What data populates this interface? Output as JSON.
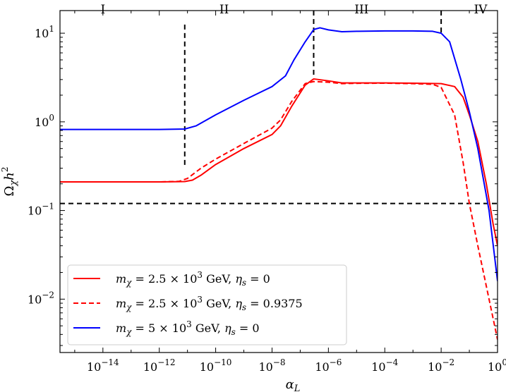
{
  "chart_data": {
    "type": "line",
    "title": "",
    "xlabel": "α_L",
    "ylabel": "Ω_χ h²",
    "xscale": "log",
    "yscale": "log",
    "xlim": [
      3e-16,
      1
    ],
    "ylim": [
      0.0025,
      18
    ],
    "grid": false,
    "legend_position": "lower-left",
    "x_ticks": [
      {
        "value": 1e-14,
        "base": "10",
        "exp": "−14"
      },
      {
        "value": 1e-12,
        "base": "10",
        "exp": "−12"
      },
      {
        "value": 1e-10,
        "base": "10",
        "exp": "−10"
      },
      {
        "value": 1e-08,
        "base": "10",
        "exp": "−8"
      },
      {
        "value": 1e-06,
        "base": "10",
        "exp": "−6"
      },
      {
        "value": 0.0001,
        "base": "10",
        "exp": "−4"
      },
      {
        "value": 0.01,
        "base": "10",
        "exp": "−2"
      },
      {
        "value": 1,
        "base": "10",
        "exp": "0"
      }
    ],
    "y_ticks": [
      {
        "value": 0.01,
        "base": "10",
        "exp": "−2"
      },
      {
        "value": 0.1,
        "base": "10",
        "exp": "−1"
      },
      {
        "value": 1,
        "base": "10",
        "exp": "0"
      },
      {
        "value": 10,
        "base": "10",
        "exp": "1"
      }
    ],
    "regions": [
      {
        "label": "I",
        "x": 1e-14
      },
      {
        "label": "II",
        "x": 2e-10
      },
      {
        "label": "III",
        "x": 1.5e-05
      },
      {
        "label": "IV",
        "x": 0.25
      }
    ],
    "region_boundaries": [
      {
        "x": 8e-12,
        "y_range": [
          0.32,
          12.5
        ]
      },
      {
        "x": 3e-07,
        "y_range": [
          3.2,
          18
        ]
      },
      {
        "x": 0.01,
        "y_range": [
          10,
          18
        ]
      }
    ],
    "reference_line": {
      "y": 0.12,
      "style": "dashed",
      "color": "#000000"
    },
    "series": [
      {
        "name": "m_χ = 2.5 × 10³ GeV, η_s = 0",
        "legend": {
          "lhs": "m",
          "sub": "χ",
          "mid": " = 2.5 × 10",
          "sup": "3",
          "unit": " GeV, ",
          "eta": "η",
          "eta_sub": "s",
          "rhs": " = 0"
        },
        "color": "#ff0000",
        "style": "solid",
        "points": [
          [
            3e-16,
            0.21
          ],
          [
            1e-12,
            0.21
          ],
          [
            8e-12,
            0.212
          ],
          [
            1.5e-11,
            0.22
          ],
          [
            3e-11,
            0.25
          ],
          [
            1e-10,
            0.33
          ],
          [
            1e-09,
            0.5
          ],
          [
            1e-08,
            0.72
          ],
          [
            2e-08,
            0.9
          ],
          [
            5e-08,
            1.5
          ],
          [
            1.5e-07,
            2.6
          ],
          [
            3e-07,
            3.05
          ],
          [
            1e-06,
            2.9
          ],
          [
            3e-06,
            2.75
          ],
          [
            1e-05,
            2.75
          ],
          [
            0.0001,
            2.75
          ],
          [
            0.001,
            2.73
          ],
          [
            0.01,
            2.7
          ],
          [
            0.03,
            2.5
          ],
          [
            0.06,
            1.9
          ],
          [
            0.1,
            1.2
          ],
          [
            0.2,
            0.6
          ],
          [
            0.4,
            0.2
          ],
          [
            0.7,
            0.07
          ],
          [
            1,
            0.04
          ]
        ]
      },
      {
        "name": "m_χ = 2.5 × 10³ GeV, η_s = 0.9375",
        "legend": {
          "lhs": "m",
          "sub": "χ",
          "mid": " = 2.5 × 10",
          "sup": "3",
          "unit": " GeV, ",
          "eta": "η",
          "eta_sub": "s",
          "rhs": " = 0.9375"
        },
        "color": "#ff0000",
        "style": "dashed",
        "points": [
          [
            3e-16,
            0.21
          ],
          [
            1e-12,
            0.21
          ],
          [
            5e-12,
            0.213
          ],
          [
            1e-11,
            0.23
          ],
          [
            3e-11,
            0.3
          ],
          [
            1e-10,
            0.38
          ],
          [
            1e-09,
            0.57
          ],
          [
            1e-08,
            0.85
          ],
          [
            2e-08,
            1.05
          ],
          [
            5e-08,
            1.7
          ],
          [
            1.5e-07,
            2.7
          ],
          [
            3e-07,
            2.85
          ],
          [
            1e-06,
            2.8
          ],
          [
            3e-06,
            2.7
          ],
          [
            1e-05,
            2.72
          ],
          [
            0.0001,
            2.73
          ],
          [
            0.001,
            2.7
          ],
          [
            0.005,
            2.65
          ],
          [
            0.01,
            2.45
          ],
          [
            0.03,
            1.2
          ],
          [
            0.06,
            0.35
          ],
          [
            0.1,
            0.12
          ],
          [
            0.2,
            0.04
          ],
          [
            0.5,
            0.01
          ],
          [
            1,
            0.0035
          ]
        ]
      },
      {
        "name": "m_χ = 5 × 10³ GeV, η_s = 0",
        "legend": {
          "lhs": "m",
          "sub": "χ",
          "mid": " = 5 × 10",
          "sup": "3",
          "unit": " GeV, ",
          "eta": "η",
          "eta_sub": "s",
          "rhs": " = 0"
        },
        "color": "#0000ff",
        "style": "solid",
        "points": [
          [
            3e-16,
            0.82
          ],
          [
            1e-12,
            0.82
          ],
          [
            8e-12,
            0.83
          ],
          [
            2e-11,
            0.9
          ],
          [
            1e-10,
            1.2
          ],
          [
            1e-09,
            1.75
          ],
          [
            1e-08,
            2.5
          ],
          [
            3e-08,
            3.3
          ],
          [
            6e-08,
            5.0
          ],
          [
            1.5e-07,
            8.0
          ],
          [
            3e-07,
            11.0
          ],
          [
            5e-07,
            11.5
          ],
          [
            1e-06,
            10.9
          ],
          [
            3e-06,
            10.4
          ],
          [
            1e-05,
            10.5
          ],
          [
            0.0001,
            10.6
          ],
          [
            0.001,
            10.6
          ],
          [
            0.005,
            10.5
          ],
          [
            0.01,
            10.0
          ],
          [
            0.02,
            8.0
          ],
          [
            0.05,
            3.0
          ],
          [
            0.1,
            1.3
          ],
          [
            0.2,
            0.5
          ],
          [
            0.5,
            0.1
          ],
          [
            1,
            0.016
          ]
        ]
      }
    ]
  }
}
